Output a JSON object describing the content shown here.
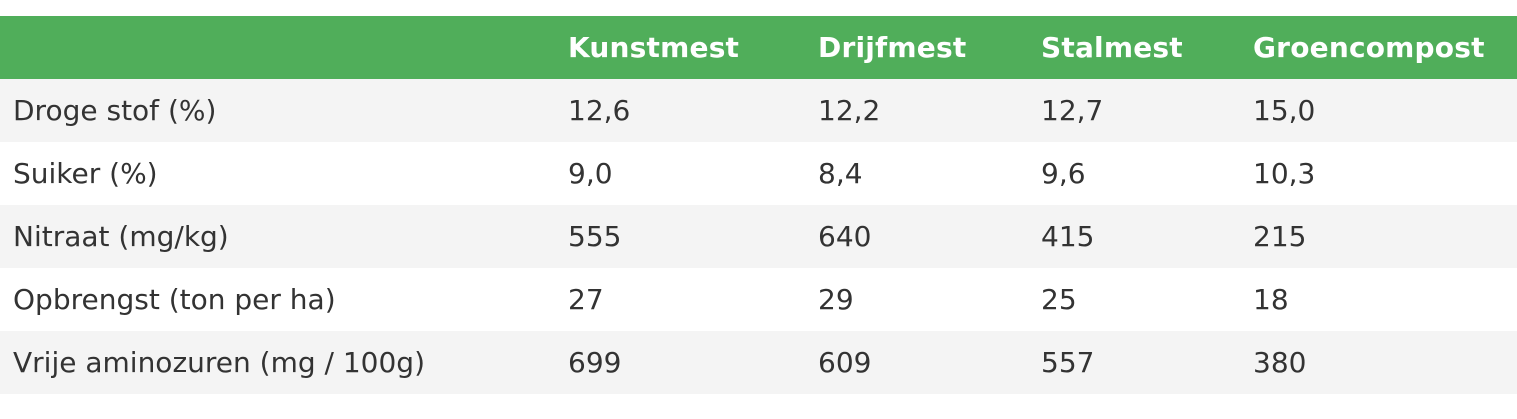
{
  "table": {
    "columns": [
      "",
      "Kunstmest",
      "Drijfmest",
      "Stalmest",
      "Groencompost"
    ],
    "rows": [
      [
        "Droge stof (%)",
        "12,6",
        "12,2",
        "12,7",
        "15,0"
      ],
      [
        "Suiker (%)",
        "9,0",
        "8,4",
        "9,6",
        "10,3"
      ],
      [
        "Nitraat (mg/kg)",
        "555",
        "640",
        "415",
        "215"
      ],
      [
        "Opbrengst (ton per ha)",
        "27",
        "29",
        "25",
        "18"
      ],
      [
        "Vrije aminozuren (mg / 100g)",
        "699",
        "609",
        "557",
        "380"
      ]
    ]
  },
  "colors": {
    "header_bg": "#50ae5a",
    "header_text": "#ffffff",
    "row_alt_bg": "#f4f4f4",
    "body_text": "#333333"
  }
}
